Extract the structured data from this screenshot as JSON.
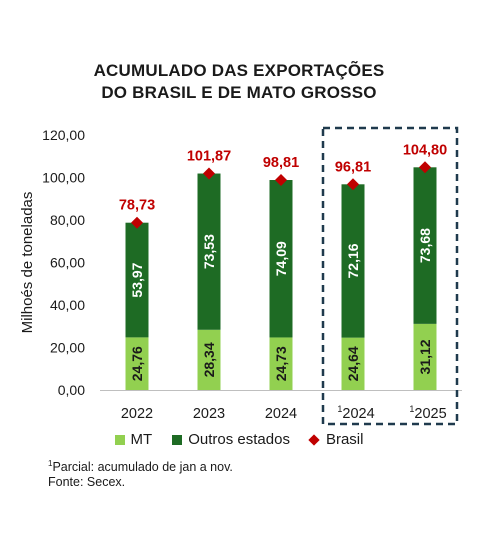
{
  "chart_data": {
    "type": "bar",
    "title_lines": [
      "ACUMULADO DAS EXPORTAÇÕES",
      "DO BRASIL E DE MATO GROSSO"
    ],
    "ylabel": "Milhoés de toneladas",
    "ylim": [
      0,
      120
    ],
    "yticks": [
      "0,00",
      "20,00",
      "40,00",
      "60,00",
      "80,00",
      "100,00",
      "120,00"
    ],
    "yticks_values": [
      0,
      20,
      40,
      60,
      80,
      100,
      120
    ],
    "categories": [
      {
        "label": "2022",
        "sup": ""
      },
      {
        "label": "2023",
        "sup": ""
      },
      {
        "label": "2024",
        "sup": ""
      },
      {
        "label": "2024",
        "sup": "1"
      },
      {
        "label": "2025",
        "sup": "1"
      }
    ],
    "series": [
      {
        "name": "MT",
        "color": "#92d050",
        "values": [
          24.76,
          28.34,
          24.73,
          24.64,
          31.12
        ],
        "labels": [
          "24,76",
          "28,34",
          "24,73",
          "24,64",
          "31,12"
        ]
      },
      {
        "name": "Outros estados",
        "color": "#1e6b24",
        "values": [
          53.97,
          73.53,
          74.09,
          72.16,
          73.68
        ],
        "labels": [
          "53,97",
          "73,53",
          "74,09",
          "72,16",
          "73,68"
        ]
      },
      {
        "name": "Brasil",
        "color": "#c00000",
        "values": [
          78.73,
          101.87,
          98.81,
          96.81,
          104.8
        ],
        "labels": [
          "78,73",
          "101,87",
          "98,81",
          "96,81",
          "104,80"
        ]
      }
    ],
    "highlight_box": "around last two categories (partial)",
    "grid": false
  },
  "footnotes": {
    "partial_sup": "1",
    "partial": "Parcial: acumulado de jan a nov.",
    "source": "Fonte: Secex."
  }
}
